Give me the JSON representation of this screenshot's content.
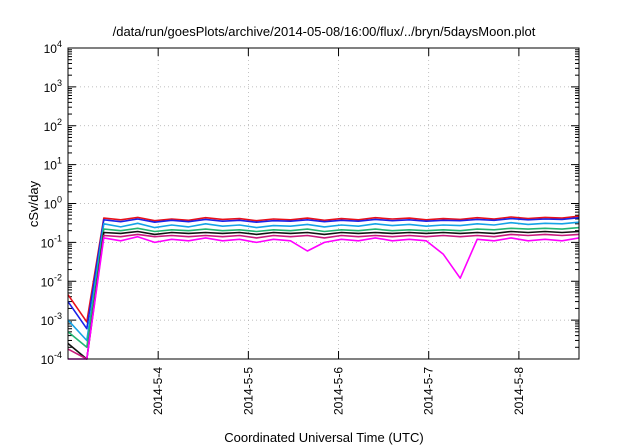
{
  "chart_data": {
    "type": "line",
    "title": "/data/run/goesPlots/archive/2014-05-08/16:00/flux/../bryn/5daysMoon.plot",
    "xlabel": "Coordinated Universal Time (UTC)",
    "ylabel": "cSv/day",
    "yscale": "log",
    "ylim": [
      0.0001,
      10000
    ],
    "y_ticks": [
      {
        "value": 0.0001,
        "base": "10",
        "exp": "-4"
      },
      {
        "value": 0.001,
        "base": "10",
        "exp": "-3"
      },
      {
        "value": 0.01,
        "base": "10",
        "exp": "-2"
      },
      {
        "value": 0.1,
        "base": "10",
        "exp": "-1"
      },
      {
        "value": 1,
        "base": "10",
        "exp": "0"
      },
      {
        "value": 10,
        "base": "10",
        "exp": "1"
      },
      {
        "value": 100,
        "base": "10",
        "exp": "2"
      },
      {
        "value": 1000,
        "base": "10",
        "exp": "3"
      },
      {
        "value": 10000,
        "base": "10",
        "exp": "4"
      }
    ],
    "xlim": [
      "2014-05-03 00:00",
      "2014-05-08 16:00"
    ],
    "x_ticks": [
      {
        "label": "2014-5-4",
        "date": "2014-05-04 00:00"
      },
      {
        "label": "2014-5-5",
        "date": "2014-05-05 00:00"
      },
      {
        "label": "2014-5-6",
        "date": "2014-05-06 00:00"
      },
      {
        "label": "2014-5-7",
        "date": "2014-05-07 00:00"
      },
      {
        "label": "2014-5-8",
        "date": "2014-05-08 00:00"
      }
    ],
    "grid": true,
    "series": [
      {
        "color": "#e8101a",
        "start": "2014-05-03 02:00",
        "values": [
          0.0045,
          0.0009,
          0.42,
          0.38,
          0.44,
          0.36,
          0.4,
          0.37,
          0.43,
          0.39,
          0.41,
          0.36,
          0.4,
          0.38,
          0.42,
          0.37,
          0.41,
          0.38,
          0.43,
          0.4,
          0.42,
          0.38,
          0.41,
          0.39,
          0.43,
          0.4,
          0.45,
          0.41,
          0.44,
          0.42,
          0.47
        ]
      },
      {
        "color": "#1a22e8",
        "start": "2014-05-03 02:00",
        "values": [
          0.003,
          0.0006,
          0.38,
          0.34,
          0.4,
          0.33,
          0.37,
          0.34,
          0.39,
          0.35,
          0.37,
          0.33,
          0.36,
          0.35,
          0.38,
          0.34,
          0.37,
          0.35,
          0.39,
          0.36,
          0.38,
          0.35,
          0.37,
          0.36,
          0.39,
          0.37,
          0.41,
          0.38,
          0.4,
          0.39,
          0.43
        ]
      },
      {
        "color": "#16a3e6",
        "start": "2014-05-03 02:00",
        "values": [
          0.001,
          0.0003,
          0.3,
          0.25,
          0.31,
          0.24,
          0.28,
          0.25,
          0.3,
          0.26,
          0.28,
          0.24,
          0.27,
          0.26,
          0.29,
          0.25,
          0.28,
          0.26,
          0.3,
          0.27,
          0.29,
          0.26,
          0.28,
          0.27,
          0.3,
          0.28,
          0.32,
          0.29,
          0.31,
          0.3,
          0.33
        ]
      },
      {
        "color": "#22b573",
        "start": "2014-05-03 02:00",
        "values": [
          0.0005,
          0.0002,
          0.22,
          0.2,
          0.23,
          0.19,
          0.21,
          0.2,
          0.22,
          0.2,
          0.21,
          0.19,
          0.21,
          0.2,
          0.22,
          0.19,
          0.21,
          0.2,
          0.22,
          0.2,
          0.21,
          0.2,
          0.21,
          0.2,
          0.22,
          0.21,
          0.23,
          0.22,
          0.23,
          0.22,
          0.24
        ]
      },
      {
        "color": "#111111",
        "start": "2014-05-03 02:00",
        "values": [
          0.00025,
          0.0001,
          0.18,
          0.17,
          0.19,
          0.16,
          0.18,
          0.17,
          0.18,
          0.17,
          0.18,
          0.16,
          0.18,
          0.17,
          0.18,
          0.16,
          0.18,
          0.17,
          0.18,
          0.17,
          0.18,
          0.17,
          0.18,
          0.17,
          0.18,
          0.17,
          0.19,
          0.18,
          0.19,
          0.18,
          0.19
        ]
      },
      {
        "color": "#c8197d",
        "start": "2014-05-03 02:00",
        "values": [
          0.00018,
          0.0001,
          0.15,
          0.14,
          0.16,
          0.14,
          0.15,
          0.14,
          0.15,
          0.14,
          0.15,
          0.13,
          0.15,
          0.14,
          0.15,
          0.13,
          0.15,
          0.14,
          0.15,
          0.14,
          0.15,
          0.14,
          0.15,
          0.14,
          0.15,
          0.14,
          0.16,
          0.15,
          0.16,
          0.15,
          0.16
        ]
      },
      {
        "color": "#ff00ff",
        "start": "2014-05-03 02:00",
        "values": [
          0.0001,
          0.0001,
          0.13,
          0.11,
          0.14,
          0.1,
          0.12,
          0.11,
          0.13,
          0.11,
          0.12,
          0.1,
          0.12,
          0.11,
          0.06,
          0.1,
          0.12,
          0.11,
          0.13,
          0.11,
          0.12,
          0.11,
          0.05,
          0.012,
          0.12,
          0.11,
          0.13,
          0.11,
          0.12,
          0.11,
          0.13
        ]
      }
    ]
  }
}
